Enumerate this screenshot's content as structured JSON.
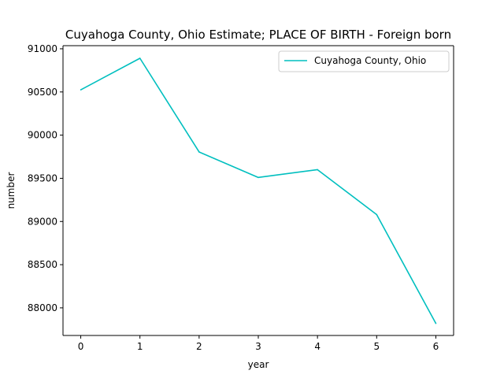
{
  "chart_data": {
    "type": "line",
    "title": "Cuyahoga County, Ohio Estimate; PLACE OF BIRTH - Foreign born",
    "xlabel": "year",
    "ylabel": "number",
    "x": [
      0,
      1,
      2,
      3,
      4,
      5,
      6
    ],
    "series": [
      {
        "name": "Cuyahoga County, Ohio",
        "color": "#00bfbf",
        "values": [
          90525,
          90890,
          89805,
          89510,
          89600,
          89080,
          87820
        ]
      }
    ],
    "xlim": [
      -0.3,
      6.3
    ],
    "ylim": [
      87680,
      91036
    ],
    "xticks": [
      0,
      1,
      2,
      3,
      4,
      5,
      6
    ],
    "xtick_labels": [
      "0",
      "1",
      "2",
      "3",
      "4",
      "5",
      "6"
    ],
    "yticks": [
      88000,
      88500,
      89000,
      89500,
      90000,
      90500,
      91000
    ],
    "ytick_labels": [
      "88000",
      "88500",
      "89000",
      "89500",
      "90000",
      "90500",
      "91000"
    ],
    "grid": false,
    "legend_position": "top-right"
  }
}
